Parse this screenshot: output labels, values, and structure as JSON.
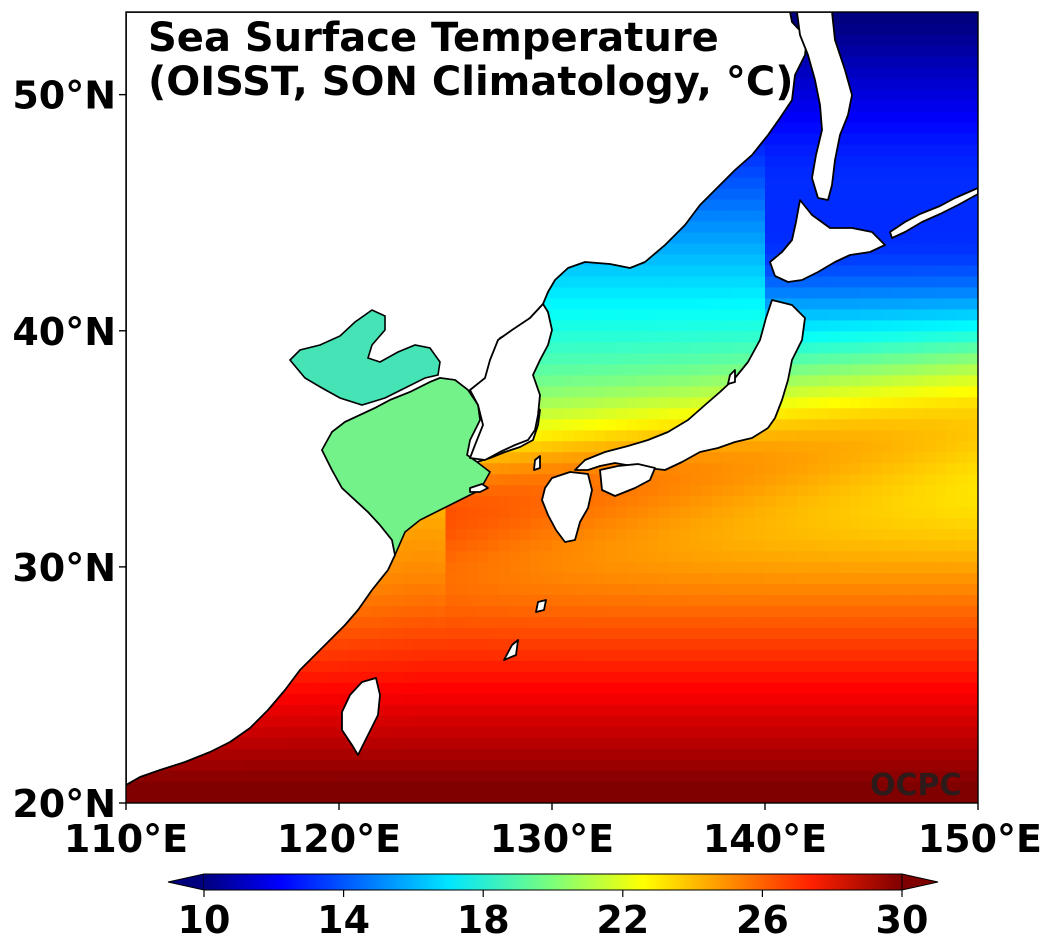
{
  "title": {
    "line1": "Sea Surface Temperature",
    "line2": "(OISST, SON Climatology, °C)"
  },
  "watermark": "OCPC",
  "map": {
    "lon_range": [
      110,
      150
    ],
    "lat_range": [
      20,
      53.5
    ],
    "lon_ticks": [
      {
        "value": 110,
        "label": "110°E"
      },
      {
        "value": 120,
        "label": "120°E"
      },
      {
        "value": 130,
        "label": "130°E"
      },
      {
        "value": 140,
        "label": "140°E"
      },
      {
        "value": 150,
        "label": "150°E"
      }
    ],
    "lat_ticks": [
      {
        "value": 20,
        "label": "20°N"
      },
      {
        "value": 30,
        "label": "30°N"
      },
      {
        "value": 40,
        "label": "40°N"
      },
      {
        "value": 50,
        "label": "50°N"
      }
    ]
  },
  "colorbar": {
    "min": 10,
    "max": 30,
    "extend": "both",
    "colormap": "jet",
    "ticks": [
      {
        "value": 10,
        "label": "10"
      },
      {
        "value": 14,
        "label": "14"
      },
      {
        "value": 18,
        "label": "18"
      },
      {
        "value": 22,
        "label": "22"
      },
      {
        "value": 26,
        "label": "26"
      },
      {
        "value": 30,
        "label": "30"
      }
    ]
  },
  "colors": {
    "cold": "#00007f",
    "warm": "#7f0000",
    "land": "#ffffff",
    "coastline": "#000000"
  }
}
